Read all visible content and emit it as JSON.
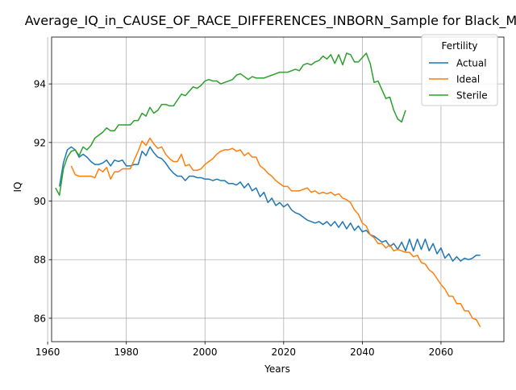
{
  "chart_data": {
    "type": "line",
    "title": "Average_IQ_in_CAUSE_OF_RACE_DIFFERENCES_INBORN_Sample for Black_M",
    "xlabel": "Years",
    "ylabel": "IQ",
    "xlim": [
      1961,
      2076
    ],
    "ylim": [
      85.2,
      95.6
    ],
    "xticks": [
      1960,
      1980,
      2000,
      2020,
      2040,
      2060
    ],
    "yticks": [
      86,
      88,
      90,
      92,
      94
    ],
    "grid": true,
    "legend": {
      "title": "Fertility",
      "placement": "top-right"
    },
    "series": [
      {
        "name": "Actual",
        "color": "#1f77b4",
        "x": [
          1963,
          1964,
          1965,
          1966,
          1967,
          1968,
          1969,
          1970,
          1971,
          1972,
          1973,
          1974,
          1975,
          1976,
          1977,
          1978,
          1979,
          1980,
          1981,
          1982,
          1983,
          1984,
          1985,
          1986,
          1987,
          1988,
          1989,
          1990,
          1991,
          1992,
          1993,
          1994,
          1995,
          1996,
          1997,
          1998,
          1999,
          2000,
          2001,
          2002,
          2003,
          2004,
          2005,
          2006,
          2007,
          2008,
          2009,
          2010,
          2011,
          2012,
          2013,
          2014,
          2015,
          2016,
          2017,
          2018,
          2019,
          2020,
          2021,
          2022,
          2023,
          2024,
          2025,
          2026,
          2027,
          2028,
          2029,
          2030,
          2031,
          2032,
          2033,
          2034,
          2035,
          2036,
          2037,
          2038,
          2039,
          2040,
          2041,
          2042,
          2043,
          2044,
          2045,
          2046,
          2047,
          2048,
          2049,
          2050,
          2051,
          2052,
          2053,
          2054,
          2055,
          2056,
          2057,
          2058,
          2059,
          2060,
          2061,
          2062,
          2063,
          2064,
          2065,
          2066,
          2067,
          2068,
          2069,
          2070
        ],
        "y": [
          90.5,
          91.3,
          91.75,
          91.85,
          91.75,
          91.5,
          91.6,
          91.5,
          91.35,
          91.25,
          91.25,
          91.3,
          91.4,
          91.2,
          91.4,
          91.35,
          91.4,
          91.2,
          91.2,
          91.25,
          91.25,
          91.7,
          91.55,
          91.85,
          91.65,
          91.5,
          91.45,
          91.3,
          91.1,
          90.95,
          90.85,
          90.85,
          90.7,
          90.85,
          90.85,
          90.8,
          90.8,
          90.75,
          90.75,
          90.7,
          90.75,
          90.7,
          90.7,
          90.6,
          90.6,
          90.55,
          90.65,
          90.45,
          90.6,
          90.35,
          90.45,
          90.15,
          90.3,
          89.95,
          90.1,
          89.85,
          89.95,
          89.8,
          89.9,
          89.7,
          89.6,
          89.55,
          89.45,
          89.35,
          89.3,
          89.25,
          89.3,
          89.2,
          89.3,
          89.15,
          89.3,
          89.1,
          89.3,
          89.05,
          89.25,
          89.0,
          89.15,
          88.95,
          89.0,
          88.85,
          88.8,
          88.7,
          88.6,
          88.65,
          88.45,
          88.55,
          88.35,
          88.6,
          88.3,
          88.7,
          88.3,
          88.7,
          88.35,
          88.7,
          88.3,
          88.55,
          88.2,
          88.4,
          88.05,
          88.2,
          87.95,
          88.1,
          87.95,
          88.05,
          88.0,
          88.05,
          88.15,
          88.15
        ]
      },
      {
        "name": "Ideal",
        "color": "#ff7f0e",
        "x": [
          1966,
          1967,
          1968,
          1969,
          1970,
          1971,
          1972,
          1973,
          1974,
          1975,
          1976,
          1977,
          1978,
          1979,
          1980,
          1981,
          1982,
          1983,
          1984,
          1985,
          1986,
          1987,
          1988,
          1989,
          1990,
          1991,
          1992,
          1993,
          1994,
          1995,
          1996,
          1997,
          1998,
          1999,
          2000,
          2001,
          2002,
          2003,
          2004,
          2005,
          2006,
          2007,
          2008,
          2009,
          2010,
          2011,
          2012,
          2013,
          2014,
          2015,
          2016,
          2017,
          2018,
          2019,
          2020,
          2021,
          2022,
          2023,
          2024,
          2025,
          2026,
          2027,
          2028,
          2029,
          2030,
          2031,
          2032,
          2033,
          2034,
          2035,
          2036,
          2037,
          2038,
          2039,
          2040,
          2041,
          2042,
          2043,
          2044,
          2045,
          2046,
          2047,
          2048,
          2049,
          2050,
          2051,
          2052,
          2053,
          2054,
          2055,
          2056,
          2057,
          2058,
          2059,
          2060,
          2061,
          2062,
          2063,
          2064,
          2065,
          2066,
          2067,
          2068,
          2069,
          2070
        ],
        "y": [
          91.2,
          90.9,
          90.85,
          90.85,
          90.85,
          90.85,
          90.8,
          91.1,
          91.0,
          91.15,
          90.75,
          91.0,
          91.0,
          91.1,
          91.1,
          91.1,
          91.4,
          91.7,
          92.05,
          91.9,
          92.15,
          91.95,
          91.8,
          91.85,
          91.6,
          91.45,
          91.35,
          91.35,
          91.6,
          91.2,
          91.25,
          91.05,
          91.05,
          91.1,
          91.25,
          91.35,
          91.45,
          91.6,
          91.7,
          91.75,
          91.75,
          91.8,
          91.7,
          91.75,
          91.55,
          91.65,
          91.5,
          91.5,
          91.2,
          91.1,
          90.95,
          90.85,
          90.7,
          90.6,
          90.5,
          90.5,
          90.35,
          90.35,
          90.35,
          90.4,
          90.45,
          90.3,
          90.35,
          90.25,
          90.3,
          90.25,
          90.3,
          90.2,
          90.25,
          90.1,
          90.05,
          89.95,
          89.7,
          89.55,
          89.25,
          89.15,
          88.85,
          88.75,
          88.55,
          88.55,
          88.4,
          88.5,
          88.3,
          88.35,
          88.3,
          88.25,
          88.25,
          88.1,
          88.15,
          87.9,
          87.85,
          87.65,
          87.55,
          87.35,
          87.15,
          87.0,
          86.75,
          86.75,
          86.5,
          86.5,
          86.25,
          86.25,
          86.0,
          85.95,
          85.7
        ]
      },
      {
        "name": "Sterile",
        "color": "#2ca02c",
        "x": [
          1962,
          1963,
          1964,
          1965,
          1966,
          1967,
          1968,
          1969,
          1970,
          1971,
          1972,
          1973,
          1974,
          1975,
          1976,
          1977,
          1978,
          1979,
          1980,
          1981,
          1982,
          1983,
          1984,
          1985,
          1986,
          1987,
          1988,
          1989,
          1990,
          1991,
          1992,
          1993,
          1994,
          1995,
          1996,
          1997,
          1998,
          1999,
          2000,
          2001,
          2002,
          2003,
          2004,
          2005,
          2006,
          2007,
          2008,
          2009,
          2010,
          2011,
          2012,
          2013,
          2014,
          2015,
          2016,
          2017,
          2018,
          2019,
          2020,
          2021,
          2022,
          2023,
          2024,
          2025,
          2026,
          2027,
          2028,
          2029,
          2030,
          2031,
          2032,
          2033,
          2034,
          2035,
          2036,
          2037,
          2038,
          2039,
          2040,
          2041,
          2042,
          2043,
          2044,
          2045,
          2046,
          2047,
          2048,
          2049,
          2050,
          2051
        ],
        "y": [
          90.45,
          90.2,
          91.1,
          91.5,
          91.7,
          91.75,
          91.55,
          91.85,
          91.75,
          91.9,
          92.15,
          92.25,
          92.35,
          92.5,
          92.4,
          92.4,
          92.6,
          92.6,
          92.6,
          92.6,
          92.75,
          92.75,
          93.0,
          92.9,
          93.2,
          93.0,
          93.1,
          93.3,
          93.3,
          93.25,
          93.25,
          93.45,
          93.65,
          93.6,
          93.75,
          93.9,
          93.85,
          93.95,
          94.1,
          94.15,
          94.1,
          94.1,
          94.0,
          94.05,
          94.1,
          94.15,
          94.3,
          94.35,
          94.25,
          94.15,
          94.25,
          94.2,
          94.2,
          94.2,
          94.25,
          94.3,
          94.35,
          94.4,
          94.4,
          94.4,
          94.45,
          94.5,
          94.45,
          94.65,
          94.7,
          94.65,
          94.75,
          94.8,
          94.95,
          94.85,
          95.0,
          94.7,
          95.0,
          94.65,
          95.05,
          95.0,
          94.75,
          94.75,
          94.9,
          95.05,
          94.7,
          94.05,
          94.1,
          93.8,
          93.5,
          93.55,
          93.1,
          92.8,
          92.7,
          93.1
        ]
      }
    ]
  }
}
